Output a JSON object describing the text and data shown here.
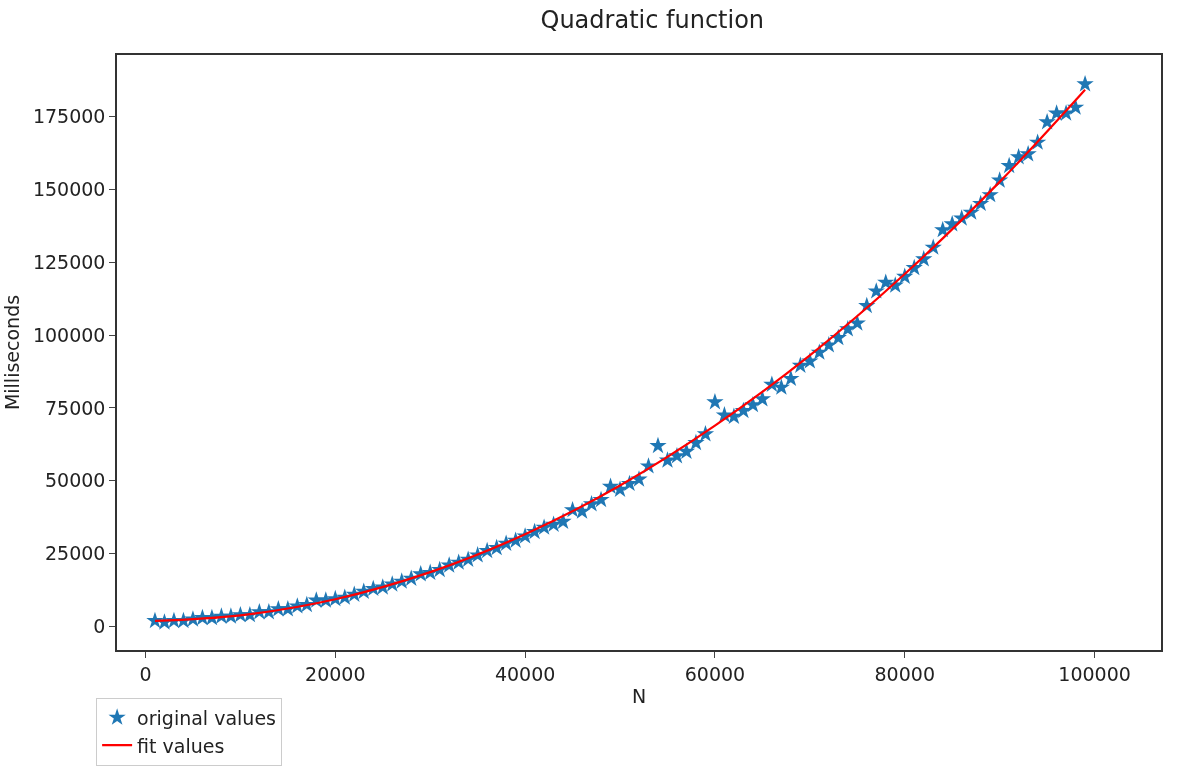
{
  "chart_data": {
    "type": "scatter",
    "title": "Quadratic function",
    "xlabel": "N",
    "ylabel": "Milliseconds",
    "xlim": [
      -3000,
      107000
    ],
    "xticks": [
      0,
      20000,
      40000,
      60000,
      80000,
      100000
    ],
    "ylim": [
      -8000,
      196000
    ],
    "yticks": [
      0,
      25000,
      50000,
      75000,
      100000,
      125000,
      150000,
      175000
    ],
    "legend": "bottom left",
    "series": [
      {
        "name": "original values",
        "marker": "star",
        "color": "#1f77b4",
        "x": [
          1000,
          2000,
          3000,
          4000,
          5000,
          6000,
          7000,
          8000,
          9000,
          10000,
          11000,
          12000,
          13000,
          14000,
          15000,
          16000,
          17000,
          18000,
          19000,
          20000,
          21000,
          22000,
          23000,
          24000,
          25000,
          26000,
          27000,
          28000,
          29000,
          30000,
          31000,
          32000,
          33000,
          34000,
          35000,
          36000,
          37000,
          38000,
          39000,
          40000,
          41000,
          42000,
          43000,
          44000,
          45000,
          46000,
          47000,
          48000,
          49000,
          50000,
          51000,
          52000,
          53000,
          54000,
          55000,
          56000,
          57000,
          58000,
          59000,
          60000,
          61000,
          62000,
          63000,
          64000,
          65000,
          66000,
          67000,
          68000,
          69000,
          70000,
          71000,
          72000,
          73000,
          74000,
          75000,
          76000,
          77000,
          78000,
          79000,
          80000,
          81000,
          82000,
          83000,
          84000,
          85000,
          86000,
          87000,
          88000,
          89000,
          90000,
          91000,
          92000,
          93000,
          94000,
          95000,
          96000,
          97000,
          98000,
          99000
        ],
        "values": [
          2000,
          1500,
          2000,
          2000,
          2500,
          3000,
          3000,
          3500,
          3500,
          4000,
          4000,
          5000,
          5000,
          6000,
          6000,
          7000,
          7500,
          9000,
          9000,
          9500,
          10000,
          11000,
          12000,
          13000,
          13500,
          14500,
          15500,
          16500,
          18000,
          18500,
          19500,
          21000,
          22000,
          23000,
          24500,
          26000,
          27000,
          28500,
          29500,
          31000,
          32500,
          34000,
          35000,
          36000,
          40000,
          39500,
          42000,
          43500,
          48000,
          47000,
          49000,
          50500,
          55000,
          62000,
          57000,
          58500,
          60000,
          63000,
          66000,
          77000,
          72500,
          72000,
          74000,
          76000,
          78000,
          83000,
          82000,
          85000,
          89500,
          91000,
          94000,
          96500,
          99000,
          102000,
          104000,
          110000,
          115000,
          118000,
          117000,
          120000,
          123000,
          126000,
          130000,
          136000,
          138000,
          140000,
          142000,
          145000,
          148000,
          153000,
          158000,
          161000,
          162000,
          166000,
          173000,
          176000,
          176000,
          178000,
          186000
        ]
      },
      {
        "name": "fit values",
        "type": "line",
        "marker": "none",
        "line_style": "solid",
        "color": "#ff0000",
        "x": [
          1000,
          10000,
          20000,
          30000,
          40000,
          50000,
          60000,
          70000,
          80000,
          90000,
          99000
        ],
        "values": [
          2000,
          3900,
          9400,
          18700,
          31700,
          48400,
          68900,
          93000,
          120900,
          152500,
          184100
        ]
      }
    ]
  }
}
